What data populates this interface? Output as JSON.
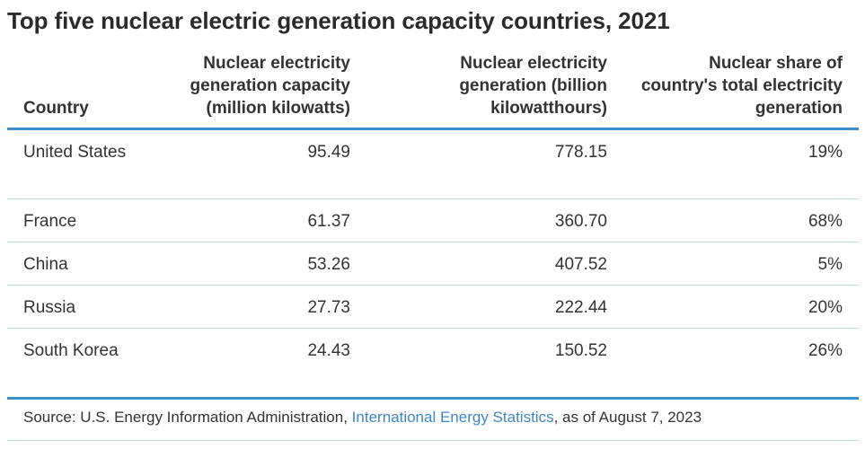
{
  "title": "Top five nuclear electric generation capacity countries, 2021",
  "table": {
    "headers": {
      "country": "Country",
      "capacity": "Nuclear electricity generation capacity (million kilowatts)",
      "generation": "Nuclear electricity generation (billion kilowatthours)",
      "share": "Nuclear share of country's total electricity generation"
    },
    "rows": [
      {
        "country": "United States",
        "capacity": "95.49",
        "generation": "778.15",
        "share": "19%"
      },
      {
        "country": "France",
        "capacity": "61.37",
        "generation": "360.70",
        "share": "68%"
      },
      {
        "country": "China",
        "capacity": "53.26",
        "generation": "407.52",
        "share": "5%"
      },
      {
        "country": "Russia",
        "capacity": "27.73",
        "generation": "222.44",
        "share": "20%"
      },
      {
        "country": "South Korea",
        "capacity": "24.43",
        "generation": "150.52",
        "share": "26%"
      }
    ]
  },
  "source": {
    "prefix": "Source: U.S. Energy Information Administration, ",
    "link_text": "International Energy Statistics",
    "suffix": ", as of August 7, 2023"
  },
  "colors": {
    "accent_rule": "#3b8fcc",
    "row_rule": "#b8dbea",
    "link": "#3b86c4"
  }
}
